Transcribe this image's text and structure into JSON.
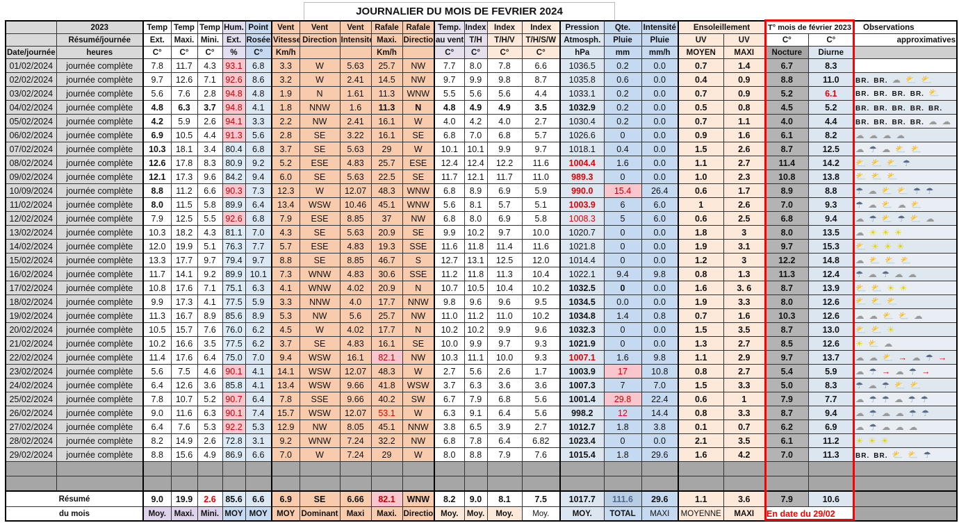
{
  "title": "JOURNALIER DU MOIS DE FEVRIER 2024",
  "colors": {
    "alert_bg": "#f8c6cc",
    "alert_text": "#c00000",
    "frame": "#ff0000",
    "wind": "#f8cbad",
    "rain": "#c5d9f1",
    "grey": "#a6a6a6"
  },
  "header": {
    "row1": [
      "",
      "2023",
      "Temp",
      "Temp",
      "Temp",
      "Hum.",
      "Point",
      "Vent",
      "Vent",
      "Vent",
      "Rafale",
      "Rafale",
      "Temp.",
      "Index",
      "Index",
      "Index",
      "Pression",
      "Qte.",
      "Intensité",
      "Ensoleillement",
      "T° mois de février 2023",
      "Observations"
    ],
    "row2": [
      "",
      "Résumé/journée",
      "Ext.",
      "Maxi.",
      "Mini.",
      "Ext.",
      "Rosée.",
      "Vitesse",
      "Direction",
      "Intensité",
      "Maxi.",
      "Direction",
      "au vent",
      "T/H",
      "T/H/V",
      "T/H/S/W",
      "Atmosph.",
      "Pluie",
      "Pluie",
      "UV",
      "UV",
      "C°",
      "C°",
      "approximatives"
    ],
    "row3": [
      "Date/journée",
      "heures",
      "C°",
      "C°",
      "C°",
      "%",
      "C°",
      "Km/h",
      "",
      "",
      "Km/h",
      "",
      "C°",
      "C°",
      "C°",
      "C°",
      "hPa",
      "mm",
      "mm/h",
      "MOYEN",
      "MAXI",
      "Nocture",
      "Diurne",
      ""
    ]
  },
  "rows": [
    {
      "date": "01/02/2024",
      "label": "journée complète",
      "v": [
        "7.8",
        "11.7",
        "4.3",
        "93.1",
        "6.8",
        "3.3",
        "W",
        "5.63",
        "25.7",
        "NW",
        "7.7",
        "8.0",
        "7.8",
        "6.6",
        "1036.5",
        "0.2",
        "0.0",
        "0.7",
        "1.4",
        "6.7",
        "8.3"
      ],
      "obs": []
    },
    {
      "date": "02/02/2024",
      "label": "journée complète",
      "v": [
        "9.7",
        "12.6",
        "7.1",
        "92.6",
        "8.6",
        "3.2",
        "W",
        "2.41",
        "14.5",
        "NW",
        "9.7",
        "9.9",
        "9.8",
        "8.7",
        "1035.8",
        "0.6",
        "0.0",
        "0.4",
        "0.9",
        "8.8",
        "11.0"
      ],
      "obs": [
        "br",
        "br",
        "cloud",
        "sun-cloud",
        "sun-cloud"
      ]
    },
    {
      "date": "03/02/2024",
      "label": "journée complète",
      "v": [
        "5.6",
        "7.6",
        "2.8",
        "94.8",
        "4.8",
        "1.9",
        "N",
        "1.61",
        "11.3",
        "WNW",
        "5.5",
        "5.6",
        "5.6",
        "4.4",
        "1033.1",
        "0.2",
        "0.0",
        "0.7",
        "0.9",
        "5.2",
        "6.1"
      ],
      "obs": [
        "br",
        "br",
        "br",
        "br",
        "sun-cloud"
      ]
    },
    {
      "date": "04/02/2024",
      "label": "journée complète",
      "v": [
        "4.8",
        "6.3",
        "3.7",
        "94.8",
        "4.1",
        "1.8",
        "NNW",
        "1.6",
        "11.3",
        "N",
        "4.8",
        "4.9",
        "4.9",
        "3.5",
        "1032.9",
        "0.2",
        "0.0",
        "0.5",
        "0.8",
        "4.5",
        "5.2"
      ],
      "obs": [
        "br",
        "br",
        "br",
        "br",
        "br"
      ]
    },
    {
      "date": "05/02/2024",
      "label": "journée complète",
      "v": [
        "4.2",
        "5.9",
        "2.6",
        "94.1",
        "3.3",
        "2.2",
        "NW",
        "2.41",
        "16.1",
        "W",
        "4.0",
        "4.2",
        "4.0",
        "2.7",
        "1030.4",
        "0.2",
        "0.0",
        "0.7",
        "1.1",
        "4.0",
        "4.4"
      ],
      "obs": [
        "br",
        "br",
        "br",
        "br",
        "cloud",
        "cloud"
      ]
    },
    {
      "date": "06/02/2024",
      "label": "journée complète",
      "v": [
        "6.9",
        "10.5",
        "4.4",
        "91.3",
        "5.6",
        "2.8",
        "SE",
        "3.22",
        "16.1",
        "SE",
        "6.8",
        "7.0",
        "6.8",
        "5.7",
        "1026.6",
        "0",
        "0.0",
        "0.9",
        "1.6",
        "6.1",
        "8.2"
      ],
      "obs": [
        "cloud",
        "cloud",
        "cloud",
        "cloud"
      ]
    },
    {
      "date": "07/02/2024",
      "label": "journée complète",
      "v": [
        "10.3",
        "18.1",
        "3.4",
        "80.4",
        "6.8",
        "3.7",
        "SE",
        "5.63",
        "29",
        "W",
        "10.1",
        "10.1",
        "9.9",
        "9.7",
        "1018.1",
        "0.4",
        "0.0",
        "1.5",
        "2.6",
        "8.7",
        "12.5"
      ],
      "obs": [
        "cloud",
        "rain",
        "cloud",
        "sun-cloud",
        "sun-cloud"
      ]
    },
    {
      "date": "08/02/2024",
      "label": "journée complète",
      "v": [
        "12.6",
        "17.8",
        "8.3",
        "80.9",
        "9.2",
        "5.2",
        "ESE",
        "4.83",
        "25.7",
        "ESE",
        "12.4",
        "12.4",
        "12.2",
        "11.6",
        "1004.4",
        "1.6",
        "0.0",
        "1.1",
        "2.7",
        "11.4",
        "14.2"
      ],
      "obs": [
        "sun-cloud",
        "sun-cloud",
        "sun-cloud",
        "rain"
      ]
    },
    {
      "date": "09/02/2024",
      "label": "journée complète",
      "v": [
        "12.1",
        "17.3",
        "9.6",
        "84.2",
        "9.4",
        "6.0",
        "SE",
        "5.63",
        "22.5",
        "SE",
        "11.7",
        "12.1",
        "11.7",
        "11.0",
        "989.3",
        "0",
        "0.0",
        "1.0",
        "2.3",
        "10.8",
        "13.8"
      ],
      "obs": [
        "sun-cloud",
        "sun-cloud",
        "sun-cloud"
      ]
    },
    {
      "date": "10/09/2024",
      "label": "journée complète",
      "v": [
        "8.8",
        "11.2",
        "6.6",
        "90.3",
        "7.3",
        "12.3",
        "W",
        "12.07",
        "48.3",
        "WNW",
        "6.8",
        "8.9",
        "6.9",
        "5.9",
        "990.0",
        "15.4",
        "26.4",
        "0.6",
        "1.7",
        "8.9",
        "8.8"
      ],
      "obs": [
        "rain",
        "cloud",
        "sun-cloud",
        "sun-cloud",
        "rain",
        "rain"
      ]
    },
    {
      "date": "11/02/2024",
      "label": "journée complète",
      "v": [
        "8.0",
        "11.5",
        "5.8",
        "89.9",
        "6.4",
        "13.4",
        "WSW",
        "10.46",
        "45.1",
        "WNW",
        "5.6",
        "8.1",
        "5.7",
        "5.1",
        "1003.9",
        "6",
        "6.0",
        "1",
        "2.6",
        "7.0",
        "9.3"
      ],
      "obs": [
        "rain",
        "cloud",
        "sun-cloud",
        "cloud",
        "sun-cloud"
      ]
    },
    {
      "date": "12/02/2024",
      "label": "journée complète",
      "v": [
        "7.9",
        "12.5",
        "5.5",
        "92.6",
        "6.8",
        "7.9",
        "ESE",
        "8.85",
        "37",
        "NW",
        "6.8",
        "8.0",
        "6.9",
        "5.8",
        "1008.3",
        "5",
        "6.0",
        "0.6",
        "2.5",
        "6.8",
        "9.4"
      ],
      "obs": [
        "cloud",
        "rain",
        "sun-cloud",
        "rain",
        "sun-cloud",
        "cloud"
      ]
    },
    {
      "date": "13/02/2024",
      "label": "journée complète",
      "v": [
        "10.3",
        "18.2",
        "4.3",
        "81.1",
        "7.0",
        "4.3",
        "SE",
        "5.63",
        "20.9",
        "SE",
        "9.9",
        "10.2",
        "9.7",
        "10.0",
        "1020.7",
        "0",
        "0.0",
        "1.8",
        "3",
        "8.0",
        "13.5"
      ],
      "obs": [
        "cloud",
        "sun",
        "sun",
        "sun"
      ]
    },
    {
      "date": "14/02/2024",
      "label": "journée complète",
      "v": [
        "12.0",
        "19.9",
        "5.1",
        "76.3",
        "7.7",
        "5.7",
        "ESE",
        "4.83",
        "19.3",
        "SSE",
        "11.6",
        "11.8",
        "11.4",
        "11.6",
        "1021.8",
        "0",
        "0.0",
        "1.9",
        "3.1",
        "9.7",
        "15.3"
      ],
      "obs": [
        "sun-cloud",
        "sun",
        "sun",
        "sun"
      ]
    },
    {
      "date": "15/02/2024",
      "label": "journée complète",
      "v": [
        "13.3",
        "17.7",
        "9.7",
        "79.4",
        "9.7",
        "8.8",
        "SE",
        "8.85",
        "46.7",
        "S",
        "12.7",
        "13.1",
        "12.5",
        "12.0",
        "1014.4",
        "0",
        "0.0",
        "1.2",
        "3",
        "12.2",
        "14.8"
      ],
      "obs": [
        "cloud",
        "sun-cloud",
        "sun-cloud",
        "sun-cloud"
      ]
    },
    {
      "date": "16/02/2024",
      "label": "journée complète",
      "v": [
        "11.7",
        "14.1",
        "9.2",
        "89.9",
        "10.1",
        "7.3",
        "WNW",
        "4.83",
        "30.6",
        "SSE",
        "11.2",
        "11.8",
        "11.3",
        "10.4",
        "1022.1",
        "9.4",
        "9.8",
        "0.8",
        "1.3",
        "11.3",
        "12.4"
      ],
      "obs": [
        "rain",
        "cloud",
        "rain",
        "cloud",
        "cloud"
      ]
    },
    {
      "date": "17/02/2024",
      "label": "journée complète",
      "v": [
        "10.8",
        "17.6",
        "7.1",
        "75.1",
        "6.3",
        "4.1",
        "WNW",
        "4.02",
        "20.9",
        "N",
        "10.7",
        "10.5",
        "10.4",
        "10.2",
        "1032.5",
        "0",
        "0.0",
        "1.6",
        "3. 6",
        "8.7",
        "13.9"
      ],
      "obs": [
        "sun-cloud",
        "sun-cloud",
        "sun",
        "sun"
      ]
    },
    {
      "date": "18/02/2024",
      "label": "journée complète",
      "v": [
        "9.9",
        "17.3",
        "4.1",
        "77.5",
        "5.9",
        "3.3",
        "NNW",
        "4.0",
        "17.7",
        "NNW",
        "9.8",
        "9.6",
        "9.6",
        "9.5",
        "1034.5",
        "0.0",
        "0.0",
        "1.9",
        "3.3",
        "8.0",
        "12.6"
      ],
      "obs": [
        "sun-cloud",
        "sun-cloud",
        "sun-cloud"
      ]
    },
    {
      "date": "19/02/2024",
      "label": "journée complète",
      "v": [
        "11.3",
        "16.7",
        "8.9",
        "85.6",
        "8.9",
        "5.3",
        "NW",
        "5.6",
        "25.7",
        "NW",
        "11.0",
        "11.2",
        "11.0",
        "10.2",
        "1034.8",
        "1.4",
        "0.8",
        "0.7",
        "1.6",
        "10.3",
        "12.6"
      ],
      "obs": [
        "cloud",
        "cloud",
        "sun-cloud",
        "sun-cloud",
        "cloud"
      ]
    },
    {
      "date": "20/02/2024",
      "label": "journée complète",
      "v": [
        "10.5",
        "15.7",
        "7.6",
        "76.0",
        "6.2",
        "4.5",
        "W",
        "4.02",
        "17.7",
        "N",
        "10.2",
        "10.2",
        "9.9",
        "9.6",
        "1032.3",
        "0",
        "0.0",
        "1.5",
        "3.5",
        "8.7",
        "13.0"
      ],
      "obs": [
        "sun-cloud",
        "sun-cloud",
        "sun"
      ]
    },
    {
      "date": "21/02/2024",
      "label": "journée complète",
      "v": [
        "10.2",
        "16.6",
        "3.5",
        "77.5",
        "6.2",
        "3.7",
        "SE",
        "4.83",
        "16.1",
        "SE",
        "10.0",
        "9.9",
        "9.7",
        "9.3",
        "1021.9",
        "0",
        "0.0",
        "1.3",
        "2.7",
        "8.5",
        "12.6"
      ],
      "obs": [
        "sun",
        "sun-cloud",
        "cloud"
      ]
    },
    {
      "date": "22/02/2024",
      "label": "journée complète",
      "v": [
        "11.4",
        "17.6",
        "6.4",
        "75.0",
        "7.0",
        "9.4",
        "WSW",
        "16.1",
        "82.1",
        "NW",
        "10.3",
        "11.1",
        "10.0",
        "9.3",
        "1007.1",
        "1.6",
        "9.8",
        "1.1",
        "2.9",
        "9.7",
        "13.7"
      ],
      "obs": [
        "cloud",
        "cloud",
        "sun-cloud",
        "wind",
        "cloud",
        "rain",
        "wind"
      ]
    },
    {
      "date": "23/02/2024",
      "label": "journée complète",
      "v": [
        "5.6",
        "7.5",
        "4.6",
        "90.1",
        "4.1",
        "14.1",
        "WSW",
        "12.07",
        "48.3",
        "W",
        "2.7",
        "5.6",
        "2.6",
        "1.7",
        "1003.9",
        "17",
        "10.8",
        "0.8",
        "2.7",
        "5.4",
        "5.9"
      ],
      "obs": [
        "cloud",
        "rain",
        "wind",
        "cloud",
        "rain",
        "wind"
      ]
    },
    {
      "date": "24/02/2024",
      "label": "journée complète",
      "v": [
        "6.4",
        "12.6",
        "3.6",
        "85.8",
        "4.1",
        "13.4",
        "WSW",
        "9.66",
        "41.8",
        "WSW",
        "3.7",
        "6.3",
        "3.6",
        "3.6",
        "1007.3",
        "7",
        "7.0",
        "1.5",
        "3.3",
        "5.0",
        "8.3"
      ],
      "obs": [
        "rain",
        "cloud",
        "rain",
        "sun-cloud",
        "sun-cloud"
      ]
    },
    {
      "date": "25/02/2024",
      "label": "journée complète",
      "v": [
        "7.8",
        "10.7",
        "5.2",
        "90.7",
        "6.4",
        "7.8",
        "SSE",
        "9.66",
        "40.2",
        "SW",
        "6.7",
        "7.9",
        "6.8",
        "5.6",
        "1001.4",
        "29.8",
        "22.4",
        "0.6",
        "1",
        "7.9",
        "7.7"
      ],
      "obs": [
        "cloud",
        "rain",
        "rain",
        "cloud",
        "rain",
        "rain"
      ]
    },
    {
      "date": "26/02/2024",
      "label": "journée complète",
      "v": [
        "9.0",
        "11.6",
        "6.3",
        "90.1",
        "7.4",
        "15.7",
        "WSW",
        "12.07",
        "53.1",
        "W",
        "6.3",
        "9.1",
        "6.4",
        "5.6",
        "998.2",
        "12",
        "14.4",
        "0.8",
        "3.3",
        "8.7",
        "9.4"
      ],
      "obs": [
        "cloud",
        "rain",
        "cloud",
        "cloud",
        "rain",
        "rain"
      ]
    },
    {
      "date": "27/02/2024",
      "label": "journée complète",
      "v": [
        "6.4",
        "7.6",
        "5.3",
        "92.2",
        "5.3",
        "12.9",
        "NW",
        "8.05",
        "45.1",
        "NNW",
        "3.8",
        "6.5",
        "3.9",
        "2.7",
        "1012.7",
        "1.8",
        "3.8",
        "0.1",
        "0.7",
        "6.2",
        "6.9"
      ],
      "obs": [
        "cloud",
        "rain",
        "cloud",
        "cloud",
        "cloud"
      ]
    },
    {
      "date": "28/02/2024",
      "label": "journée complète",
      "v": [
        "8.2",
        "14.9",
        "2.6",
        "72.8",
        "3.1",
        "9.2",
        "WNW",
        "7.24",
        "32.2",
        "NW",
        "6.8",
        "7.8",
        "6.4",
        "6.82",
        "1023.4",
        "0",
        "0.0",
        "2.1",
        "3.5",
        "6.1",
        "11.2"
      ],
      "obs": [
        "sun",
        "sun",
        "sun"
      ]
    },
    {
      "date": "29/02/2024",
      "label": "journée complète",
      "v": [
        "8.8",
        "15.6",
        "4.9",
        "86.9",
        "6.6",
        "7.0",
        "W",
        "7.24",
        "29",
        "W",
        "8.0",
        "8.8",
        "7.9",
        "7.6",
        "1015.4",
        "1.8",
        "29.6",
        "1.6",
        "4.2",
        "7.0",
        "11.3"
      ],
      "obs": [
        "br",
        "br",
        "sun-cloud",
        "sun-cloud",
        "rain"
      ]
    }
  ],
  "highlights": {
    "alert": [
      "0:3",
      "1:3",
      "2:3",
      "3:3",
      "4:3",
      "5:3",
      "9:3",
      "11:3",
      "22:3",
      "24:3",
      "25:3",
      "26:3",
      "21:8",
      "9:15",
      "22:15",
      "24:15"
    ],
    "red": [
      "7:14",
      "8:14",
      "9:14",
      "10:14",
      "11:14",
      "21:14",
      "25:8",
      "25:15",
      "2:20"
    ],
    "bold": [
      "3:0",
      "4:0",
      "5:0",
      "6:0",
      "7:0",
      "8:0",
      "9:0",
      "10:0",
      "3:1",
      "3:2",
      "3:8",
      "3:9",
      "3:10",
      "3:11",
      "3:12",
      "3:13",
      "3:14",
      "7:14",
      "8:14",
      "9:14",
      "10:14",
      "16:14",
      "17:14",
      "18:14",
      "19:14",
      "20:14",
      "21:14",
      "22:14",
      "23:14",
      "24:14",
      "25:14",
      "26:14",
      "27:14",
      "28:14",
      "16:15"
    ]
  },
  "summary": {
    "label1": "Résumé",
    "label2": "du mois",
    "values": [
      "9.0",
      "19.9",
      "2.6",
      "85.6",
      "6.6",
      "6.9",
      "SE",
      "6.66",
      "82.1",
      "WNW",
      "8.2",
      "9.0",
      "8.1",
      "7.5",
      "1017.7",
      "111.6",
      "29.6",
      "1.1",
      "3.6",
      "7.9",
      "10.6"
    ],
    "labels": [
      "Moy.",
      "Maxi.",
      "Mini.",
      "MOY",
      "MOY",
      "MOY",
      "Dominant",
      "Maxi",
      "Maxi.",
      "Direction",
      "Moy.",
      "Moy.",
      "Moy.",
      "Moy.",
      "MOY.",
      "TOTAL",
      "MAXI",
      "MOYENNE",
      "MAXI"
    ],
    "date_note": "En date du 29/02"
  }
}
